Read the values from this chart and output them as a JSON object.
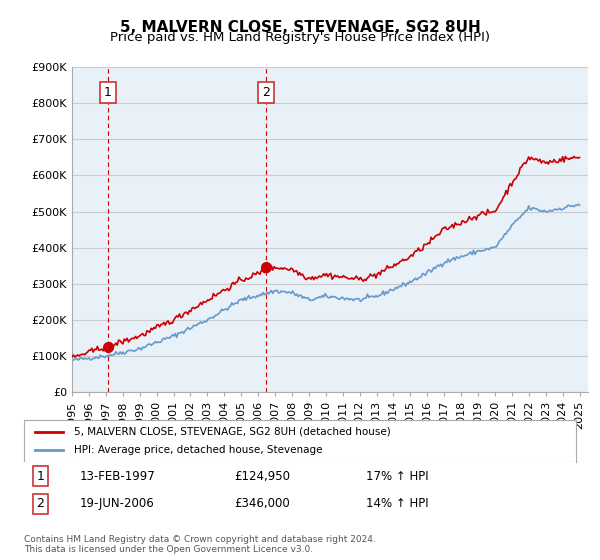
{
  "title": "5, MALVERN CLOSE, STEVENAGE, SG2 8UH",
  "subtitle": "Price paid vs. HM Land Registry's House Price Index (HPI)",
  "xlabel": "",
  "ylabel": "",
  "ylim": [
    0,
    900000
  ],
  "yticks": [
    0,
    100000,
    200000,
    300000,
    400000,
    500000,
    600000,
    700000,
    800000,
    900000
  ],
  "ytick_labels": [
    "£0",
    "£100K",
    "£200K",
    "£300K",
    "£400K",
    "£500K",
    "£600K",
    "£700K",
    "£800K",
    "£900K"
  ],
  "xlim_start": 1995.0,
  "xlim_end": 2025.5,
  "sale1_x": 1997.12,
  "sale1_y": 124950,
  "sale1_label": "1",
  "sale1_date": "13-FEB-1997",
  "sale1_price": "£124,950",
  "sale1_hpi": "17% ↑ HPI",
  "sale2_x": 2006.46,
  "sale2_y": 346000,
  "sale2_label": "2",
  "sale2_date": "19-JUN-2006",
  "sale2_price": "£346,000",
  "sale2_hpi": "14% ↑ HPI",
  "line_color_red": "#cc0000",
  "line_color_blue": "#6699cc",
  "dashed_color": "#cc0000",
  "grid_color": "#cccccc",
  "background_color": "#e8f0f8",
  "legend_label_red": "5, MALVERN CLOSE, STEVENAGE, SG2 8UH (detached house)",
  "legend_label_blue": "HPI: Average price, detached house, Stevenage",
  "footnote": "Contains HM Land Registry data © Crown copyright and database right 2024.\nThis data is licensed under the Open Government Licence v3.0.",
  "title_fontsize": 11,
  "subtitle_fontsize": 9.5,
  "axis_fontsize": 8
}
